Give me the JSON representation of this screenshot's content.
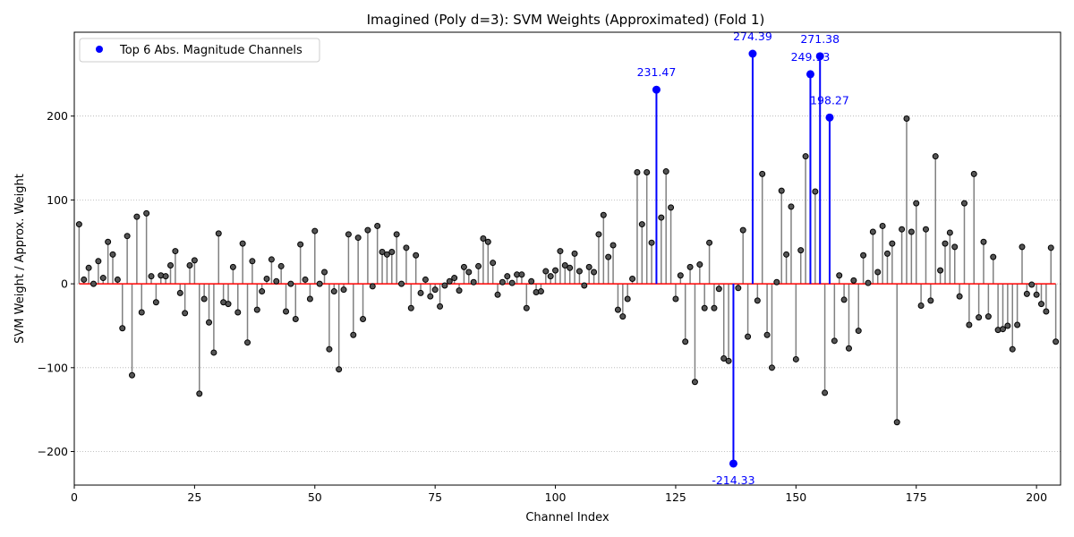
{
  "chart_data": {
    "type": "stem",
    "title": "Imagined (Poly d=3): SVM Weights (Approximated) (Fold 1)",
    "xlabel": "Channel Index",
    "ylabel": "SVM Weight / Approx. Weight",
    "xlim": [
      0,
      205
    ],
    "ylim": [
      -240,
      300
    ],
    "xticks": [
      0,
      25,
      50,
      75,
      100,
      125,
      150,
      175,
      200
    ],
    "yticks": [
      -200,
      -100,
      0,
      100,
      200
    ],
    "ytick_labels": [
      "−200",
      "−100",
      "0",
      "100",
      "200"
    ],
    "grid": "y-dotted",
    "legend": {
      "placement": "top-left",
      "label": "Top 6 Abs. Magnitude Channels"
    },
    "colors": {
      "stem": "#808080",
      "marker_fill": "#555555",
      "baseline": "#ff0000",
      "top": "#0000ff",
      "grid": "#b0b0b0"
    },
    "x": [
      1,
      2,
      3,
      4,
      5,
      6,
      7,
      8,
      9,
      10,
      11,
      12,
      13,
      14,
      15,
      16,
      17,
      18,
      19,
      20,
      21,
      22,
      23,
      24,
      25,
      26,
      27,
      28,
      29,
      30,
      31,
      32,
      33,
      34,
      35,
      36,
      37,
      38,
      39,
      40,
      41,
      42,
      43,
      44,
      45,
      46,
      47,
      48,
      49,
      50,
      51,
      52,
      53,
      54,
      55,
      56,
      57,
      58,
      59,
      60,
      61,
      62,
      63,
      64,
      65,
      66,
      67,
      68,
      69,
      70,
      71,
      72,
      73,
      74,
      75,
      76,
      77,
      78,
      79,
      80,
      81,
      82,
      83,
      84,
      85,
      86,
      87,
      88,
      89,
      90,
      91,
      92,
      93,
      94,
      95,
      96,
      97,
      98,
      99,
      100,
      101,
      102,
      103,
      104,
      105,
      106,
      107,
      108,
      109,
      110,
      111,
      112,
      113,
      114,
      115,
      116,
      117,
      118,
      119,
      120,
      121,
      122,
      123,
      124,
      125,
      126,
      127,
      128,
      129,
      130,
      131,
      132,
      133,
      134,
      135,
      136,
      137,
      138,
      139,
      140,
      141,
      142,
      143,
      144,
      145,
      146,
      147,
      148,
      149,
      150,
      151,
      152,
      153,
      154,
      155,
      156,
      157,
      158,
      159,
      160,
      161,
      162,
      163,
      164,
      165,
      166,
      167,
      168,
      169,
      170,
      171,
      172,
      173,
      174,
      175,
      176,
      177,
      178,
      179,
      180,
      181,
      182,
      183,
      184,
      185,
      186,
      187,
      188,
      189,
      190,
      191,
      192,
      193,
      194,
      195,
      196,
      197,
      198,
      199,
      200,
      201,
      202,
      203,
      204
    ],
    "values": [
      71,
      5,
      19,
      0,
      27,
      7,
      50,
      35,
      5,
      -53,
      57,
      -109,
      80,
      -34,
      84,
      9,
      -22,
      10,
      9,
      22,
      39,
      -11,
      -35,
      22,
      28,
      -131,
      -18,
      -46,
      -82,
      60,
      -22,
      -24,
      20,
      -34,
      48,
      -70,
      27,
      -31,
      -9,
      6,
      29,
      3,
      21,
      -33,
      0,
      -42,
      47,
      5,
      -18,
      63,
      0,
      14,
      -78,
      -9,
      -102,
      -7,
      59,
      -61,
      55,
      -42,
      64,
      -3,
      69,
      38,
      35,
      38,
      59,
      0,
      43,
      -29,
      34,
      -11,
      5,
      -15,
      -7,
      -27,
      -2,
      3,
      7,
      -8,
      20,
      14,
      2,
      21,
      54,
      50,
      25,
      -13,
      2,
      9,
      1,
      11,
      11,
      -29,
      3,
      -10,
      -9,
      15,
      9,
      16,
      39,
      22,
      19,
      36,
      15,
      -2,
      20,
      14,
      59,
      82,
      32,
      46,
      -31,
      -39,
      -18,
      6,
      133,
      71,
      133,
      49,
      231.47,
      79,
      134,
      91,
      -18,
      10,
      -69,
      20,
      -117,
      23,
      -29,
      49,
      -29,
      -6,
      -89,
      -92,
      -214.33,
      -5,
      64,
      -63,
      274.39,
      -20,
      131,
      -61,
      -100,
      2,
      111,
      35,
      92,
      -90,
      40,
      152,
      249.93,
      110,
      271.38,
      -130,
      198.27,
      -68,
      10,
      -19,
      -77,
      4,
      -56,
      34,
      1,
      62,
      14,
      69,
      36,
      48,
      -165,
      65,
      197,
      62,
      96,
      -26,
      65,
      -20,
      152,
      16,
      48,
      61,
      44,
      -15,
      96,
      -49,
      131,
      -40,
      50,
      -39,
      32,
      -55,
      -54,
      -50,
      -78,
      -49,
      44,
      -12,
      -1,
      -13,
      -24,
      -33,
      43,
      -69
    ],
    "top_channels": [
      {
        "x": 121,
        "value": 231.47,
        "label": "231.47"
      },
      {
        "x": 137,
        "value": -214.33,
        "label": "-214.33"
      },
      {
        "x": 141,
        "value": 274.39,
        "label": "274.39"
      },
      {
        "x": 153,
        "value": 249.93,
        "label": "249.93"
      },
      {
        "x": 155,
        "value": 271.38,
        "label": "271.38"
      },
      {
        "x": 157,
        "value": 198.27,
        "label": "198.27"
      }
    ]
  }
}
